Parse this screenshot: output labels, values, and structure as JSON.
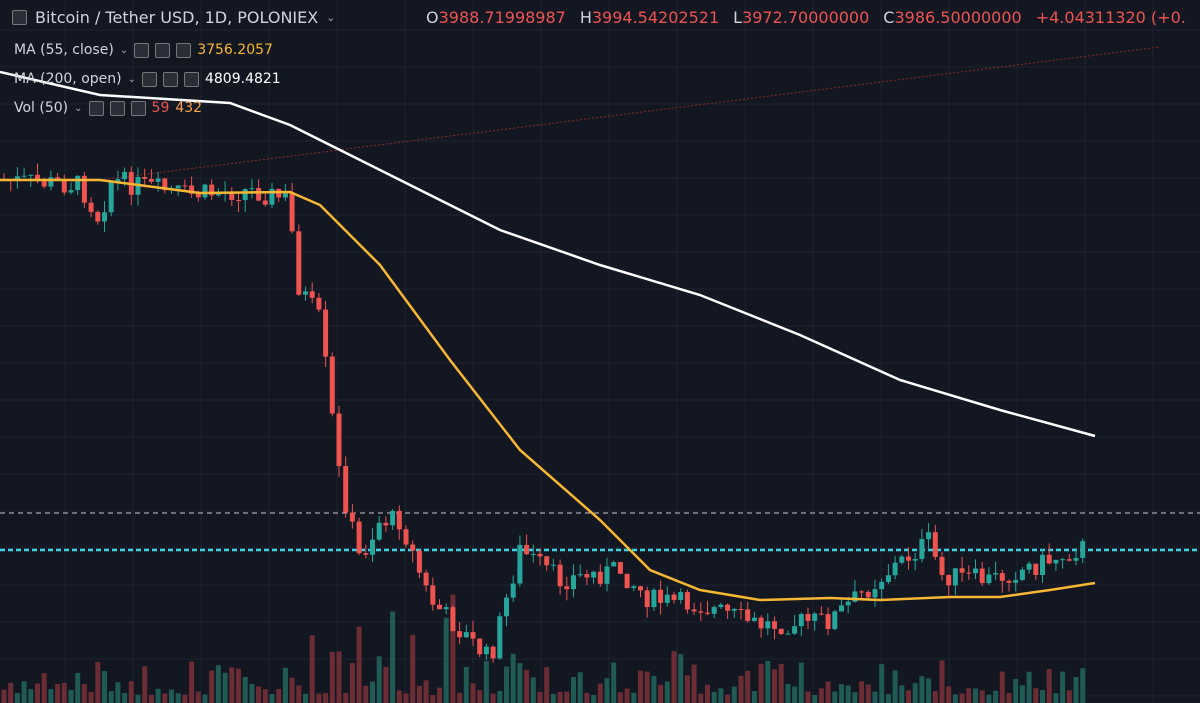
{
  "header": {
    "symbol": "Bitcoin / Tether USD, 1D, POLONIEX",
    "ohlc": [
      {
        "letter": "O",
        "value": "3988.71998987"
      },
      {
        "letter": "H",
        "value": "3994.54202521"
      },
      {
        "letter": "L",
        "value": "3972.70000000"
      },
      {
        "letter": "C",
        "value": "3986.50000000"
      }
    ],
    "change": "+4.04311320 (+0."
  },
  "indicators": [
    {
      "name": "MA (55, close)",
      "values": [
        "3756.2057"
      ]
    },
    {
      "name": "MA (200, open)",
      "values": [
        "4809.4821"
      ]
    },
    {
      "name": "Vol (50)",
      "values": [
        "59",
        "432"
      ]
    }
  ]
}
